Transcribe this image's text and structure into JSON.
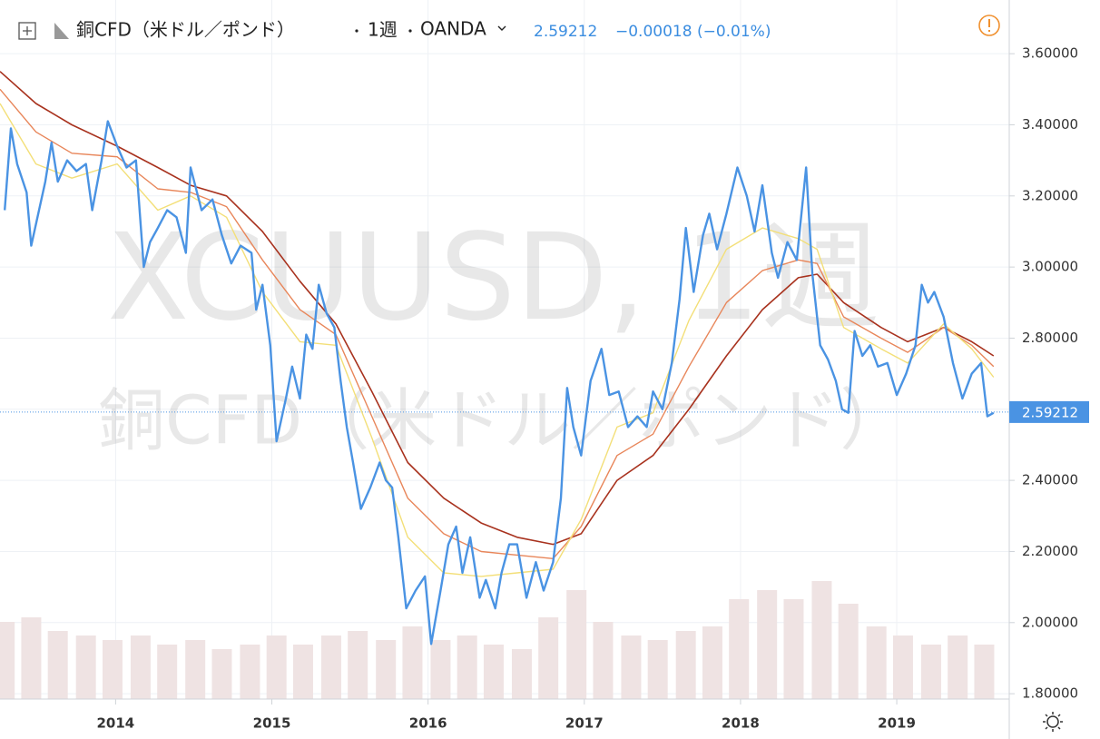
{
  "chart_data": {
    "type": "line",
    "title": "銅CFD（米ドル／ポンド）",
    "interval": "1週",
    "source": "OANDA",
    "last": 2.59212,
    "last_label": "2.59212",
    "change": "−0.00018 (−0.01%)",
    "watermark": [
      "XCUUSD, 1週",
      "銅CFD（米ドル／ポンド）"
    ],
    "xlim": [
      2013.26,
      2019.72
    ],
    "ylim": [
      1.785,
      3.751
    ],
    "xticks": [
      2014,
      2015,
      2016,
      2017,
      2018,
      2019
    ],
    "yticks": [
      {
        "value": 1.8,
        "label": "1.80000"
      },
      {
        "value": 2.0,
        "label": "2.00000"
      },
      {
        "value": 2.2,
        "label": "2.20000"
      },
      {
        "value": 2.4,
        "label": "2.40000"
      },
      {
        "value": 2.6,
        "label": "2.60000"
      },
      {
        "value": 2.8,
        "label": "2.80000"
      },
      {
        "value": 3.0,
        "label": "3.00000"
      },
      {
        "value": 3.2,
        "label": "3.20000"
      },
      {
        "value": 3.4,
        "label": "3.40000"
      },
      {
        "value": 3.6,
        "label": "3.60000"
      }
    ],
    "grid": true,
    "volume": {
      "color": "#efe3e3",
      "lim": [
        0,
        250
      ],
      "x": [
        2013.29,
        2013.46,
        2013.63,
        2013.81,
        2013.98,
        2014.16,
        2014.33,
        2014.51,
        2014.68,
        2014.86,
        2015.03,
        2015.2,
        2015.38,
        2015.55,
        2015.73,
        2015.9,
        2016.08,
        2016.25,
        2016.42,
        2016.6,
        2016.77,
        2016.95,
        2017.12,
        2017.3,
        2017.47,
        2017.65,
        2017.82,
        2017.99,
        2018.17,
        2018.34,
        2018.52,
        2018.69,
        2018.87,
        2019.04,
        2019.22,
        2019.39,
        2019.56
      ],
      "values": [
        85,
        90,
        75,
        70,
        65,
        70,
        60,
        65,
        55,
        60,
        70,
        60,
        70,
        75,
        65,
        80,
        65,
        70,
        60,
        55,
        90,
        120,
        85,
        70,
        65,
        75,
        80,
        110,
        120,
        110,
        130,
        105,
        80,
        70,
        60,
        70,
        60
      ]
    },
    "series": [
      {
        "color": "#a8321e",
        "width": 1.6,
        "x": [
          2013.26,
          2013.49,
          2013.72,
          2014.01,
          2014.27,
          2014.48,
          2014.71,
          2014.94,
          2015.18,
          2015.41,
          2015.64,
          2015.87,
          2016.1,
          2016.34,
          2016.57,
          2016.8,
          2016.98,
          2017.21,
          2017.44,
          2017.67,
          2017.91,
          2018.14,
          2018.37,
          2018.49,
          2018.66,
          2018.9,
          2019.07,
          2019.3,
          2019.48,
          2019.62
        ],
        "values": [
          3.55,
          3.46,
          3.4,
          3.34,
          3.28,
          3.23,
          3.2,
          3.1,
          2.96,
          2.84,
          2.65,
          2.45,
          2.35,
          2.28,
          2.24,
          2.22,
          2.25,
          2.4,
          2.47,
          2.6,
          2.75,
          2.88,
          2.97,
          2.98,
          2.9,
          2.83,
          2.79,
          2.83,
          2.79,
          2.75
        ]
      },
      {
        "color": "#e8865a",
        "width": 1.4,
        "x": [
          2013.26,
          2013.49,
          2013.72,
          2014.01,
          2014.27,
          2014.48,
          2014.71,
          2014.94,
          2015.18,
          2015.41,
          2015.64,
          2015.87,
          2016.1,
          2016.34,
          2016.57,
          2016.8,
          2016.98,
          2017.21,
          2017.44,
          2017.67,
          2017.91,
          2018.14,
          2018.37,
          2018.49,
          2018.66,
          2018.9,
          2019.07,
          2019.3,
          2019.48,
          2019.62
        ],
        "values": [
          3.5,
          3.38,
          3.32,
          3.31,
          3.22,
          3.21,
          3.17,
          3.02,
          2.88,
          2.81,
          2.58,
          2.35,
          2.25,
          2.2,
          2.19,
          2.18,
          2.27,
          2.47,
          2.53,
          2.72,
          2.9,
          2.99,
          3.02,
          3.01,
          2.86,
          2.8,
          2.76,
          2.83,
          2.78,
          2.72
        ]
      },
      {
        "color": "#f3df78",
        "width": 1.4,
        "x": [
          2013.26,
          2013.49,
          2013.72,
          2014.01,
          2014.27,
          2014.48,
          2014.71,
          2014.94,
          2015.18,
          2015.41,
          2015.64,
          2015.87,
          2016.1,
          2016.34,
          2016.57,
          2016.8,
          2016.98,
          2017.21,
          2017.44,
          2017.67,
          2017.91,
          2018.14,
          2018.37,
          2018.49,
          2018.66,
          2018.9,
          2019.07,
          2019.3,
          2019.48,
          2019.62
        ],
        "values": [
          3.46,
          3.29,
          3.25,
          3.29,
          3.16,
          3.2,
          3.14,
          2.93,
          2.79,
          2.78,
          2.52,
          2.24,
          2.14,
          2.13,
          2.14,
          2.15,
          2.29,
          2.55,
          2.59,
          2.85,
          3.05,
          3.11,
          3.08,
          3.05,
          2.83,
          2.77,
          2.73,
          2.84,
          2.77,
          2.69
        ]
      },
      {
        "color": "#4a93e3",
        "width": 2.4,
        "x": [
          2013.29,
          2013.33,
          2013.37,
          2013.43,
          2013.46,
          2013.5,
          2013.55,
          2013.59,
          2013.63,
          2013.69,
          2013.75,
          2013.81,
          2013.85,
          2013.91,
          2013.95,
          2014.01,
          2014.07,
          2014.13,
          2014.18,
          2014.22,
          2014.27,
          2014.33,
          2014.39,
          2014.45,
          2014.48,
          2014.55,
          2014.62,
          2014.68,
          2014.74,
          2014.8,
          2014.87,
          2014.9,
          2014.94,
          2014.99,
          2015.03,
          2015.09,
          2015.13,
          2015.18,
          2015.22,
          2015.26,
          2015.3,
          2015.35,
          2015.4,
          2015.44,
          2015.48,
          2015.52,
          2015.57,
          2015.63,
          2015.69,
          2015.73,
          2015.77,
          2015.81,
          2015.86,
          2015.92,
          2015.98,
          2016.02,
          2016.08,
          2016.13,
          2016.18,
          2016.22,
          2016.27,
          2016.33,
          2016.37,
          2016.43,
          2016.47,
          2016.52,
          2016.57,
          2016.63,
          2016.69,
          2016.74,
          2016.8,
          2016.85,
          2016.89,
          2016.93,
          2016.98,
          2017.04,
          2017.11,
          2017.16,
          2017.22,
          2017.28,
          2017.34,
          2017.4,
          2017.44,
          2017.5,
          2017.56,
          2017.61,
          2017.65,
          2017.7,
          2017.76,
          2017.8,
          2017.85,
          2017.91,
          2017.98,
          2018.04,
          2018.09,
          2018.14,
          2018.2,
          2018.24,
          2018.3,
          2018.36,
          2018.42,
          2018.46,
          2018.51,
          2018.56,
          2018.61,
          2018.65,
          2018.69,
          2018.73,
          2018.78,
          2018.83,
          2018.88,
          2018.94,
          2019.0,
          2019.06,
          2019.12,
          2019.16,
          2019.2,
          2019.24,
          2019.3,
          2019.36,
          2019.42,
          2019.48,
          2019.54,
          2019.58,
          2019.62
        ],
        "values": [
          3.16,
          3.39,
          3.29,
          3.21,
          3.06,
          3.14,
          3.24,
          3.35,
          3.24,
          3.3,
          3.27,
          3.29,
          3.16,
          3.3,
          3.41,
          3.34,
          3.28,
          3.3,
          3.0,
          3.07,
          3.11,
          3.16,
          3.14,
          3.04,
          3.28,
          3.16,
          3.19,
          3.09,
          3.01,
          3.06,
          3.04,
          2.88,
          2.95,
          2.78,
          2.51,
          2.63,
          2.72,
          2.63,
          2.81,
          2.77,
          2.95,
          2.87,
          2.83,
          2.68,
          2.55,
          2.45,
          2.32,
          2.38,
          2.45,
          2.4,
          2.38,
          2.24,
          2.04,
          2.09,
          2.13,
          1.94,
          2.09,
          2.22,
          2.27,
          2.14,
          2.24,
          2.07,
          2.12,
          2.04,
          2.14,
          2.22,
          2.22,
          2.07,
          2.17,
          2.09,
          2.17,
          2.35,
          2.66,
          2.55,
          2.47,
          2.68,
          2.77,
          2.64,
          2.65,
          2.55,
          2.58,
          2.55,
          2.65,
          2.6,
          2.73,
          2.91,
          3.11,
          2.93,
          3.09,
          3.15,
          3.05,
          3.15,
          3.28,
          3.2,
          3.1,
          3.23,
          3.04,
          2.97,
          3.07,
          3.02,
          3.28,
          2.98,
          2.78,
          2.74,
          2.68,
          2.6,
          2.59,
          2.82,
          2.75,
          2.78,
          2.72,
          2.73,
          2.64,
          2.7,
          2.78,
          2.95,
          2.9,
          2.93,
          2.86,
          2.73,
          2.63,
          2.7,
          2.73,
          2.58,
          2.59
        ]
      }
    ]
  }
}
